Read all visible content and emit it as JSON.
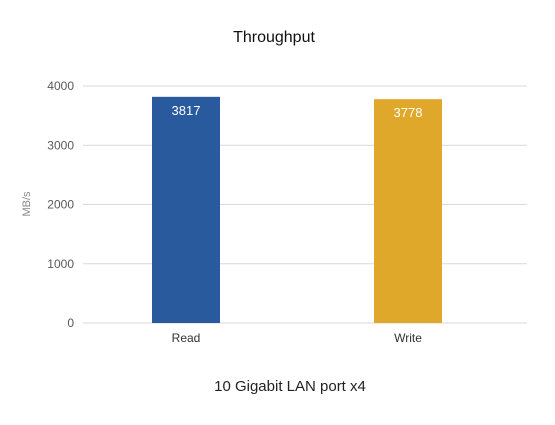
{
  "chart_data": {
    "type": "bar",
    "title": "Throughput",
    "subtitle": "10 Gigabit LAN port x4",
    "ylabel": "MB/s",
    "xlabel": "",
    "categories": [
      "Read",
      "Write"
    ],
    "values": [
      3817,
      3778
    ],
    "data_labels": [
      "3817",
      "3778"
    ],
    "colors": [
      "#2a5a9e",
      "#e0a82a"
    ],
    "ylim": [
      0,
      4000
    ],
    "yticks": [
      0,
      1000,
      2000,
      3000,
      4000
    ],
    "grid": true,
    "legend": "none"
  }
}
